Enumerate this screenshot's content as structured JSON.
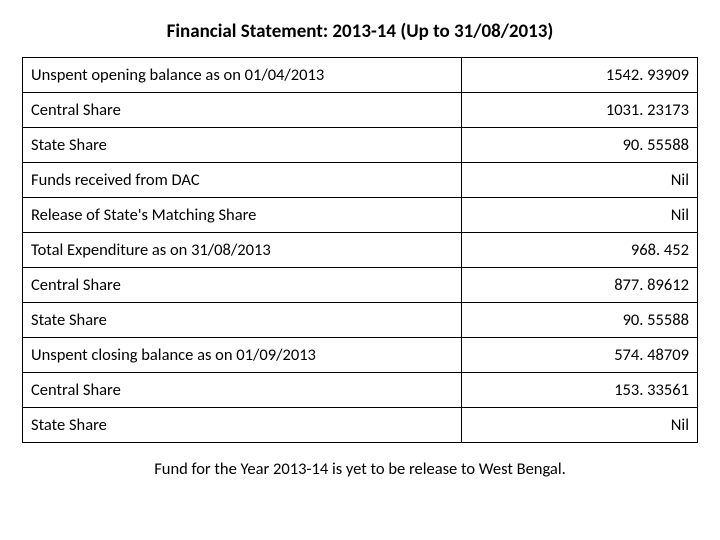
{
  "title": "Financial Statement: 2013-14 (Up to 31/08/2013)",
  "table": {
    "rows": [
      {
        "label": "Unspent opening balance as on 01/04/2013",
        "value": "1542. 93909"
      },
      {
        "label": "Central Share",
        "value": "1031. 23173"
      },
      {
        "label": "State Share",
        "value": "90. 55588"
      },
      {
        "label": "Funds received from DAC",
        "value": "Nil"
      },
      {
        "label": "Release of State's Matching Share",
        "value": "Nil"
      },
      {
        "label": "Total Expenditure as on 31/08/2013",
        "value": "968. 452"
      },
      {
        "label": "Central Share",
        "value": "877. 89612"
      },
      {
        "label": "State Share",
        "value": "90. 55588"
      },
      {
        "label": "Unspent closing balance as on 01/09/2013",
        "value": "574. 48709"
      },
      {
        "label": "Central Share",
        "value": "153. 33561"
      },
      {
        "label": "State Share",
        "value": "Nil"
      }
    ],
    "col_widths": [
      "65%",
      "35%"
    ],
    "border_color": "#000000",
    "background_color": "#ffffff",
    "label_align": "left",
    "value_align": "right",
    "font_size_pt": 12
  },
  "footnote": "Fund for the Year 2013-14 is yet to be release to West Bengal.",
  "colors": {
    "text": "#000000",
    "background": "#ffffff",
    "border": "#000000"
  },
  "typography": {
    "title_fontsize_pt": 14,
    "title_weight": "bold",
    "body_fontsize_pt": 12,
    "font_family": "Calibri"
  }
}
